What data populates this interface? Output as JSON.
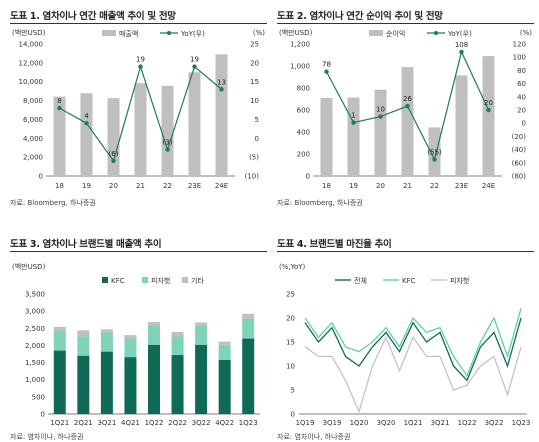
{
  "panels": [
    {
      "title": "도표 1. 염차이나 연간 매출액 추이 및 전망",
      "source": "자료: Bloomberg, 하나증권"
    },
    {
      "title": "도표 2. 염차이나 연간 순이익 추이 및 전망",
      "source": "자료: Bloomberg, 하나증권"
    },
    {
      "title": "도표 3. 염차이나 브랜드별 매출액 추이",
      "source": "자료: 염차이나, 하나증권"
    },
    {
      "title": "도표 4. 브랜드별 마진율 추이",
      "source": "자료: 염차이나, 하나증권"
    }
  ],
  "chart_data": [
    {
      "type": "bar+line",
      "categories": [
        "18",
        "19",
        "20",
        "21",
        "22",
        "23E",
        "24E"
      ],
      "ylabel_left": "(백만USD)",
      "ylabel_right": "(%)",
      "ylim_left": [
        0,
        14000
      ],
      "ylim_right": [
        -10,
        25
      ],
      "left_ticks": [
        "0",
        "2,000",
        "4,000",
        "6,000",
        "8,000",
        "10,000",
        "12,000",
        "14,000"
      ],
      "right_ticks": [
        "(10)",
        "(5)",
        "0",
        "5",
        "10",
        "15",
        "20",
        "25"
      ],
      "series": [
        {
          "name": "매출액",
          "kind": "bar",
          "axis": "left",
          "color": "#bfbfbf",
          "values": [
            8420,
            8780,
            8260,
            9850,
            9570,
            11000,
            12900
          ]
        },
        {
          "name": "YoY(우)",
          "kind": "line",
          "axis": "right",
          "color": "#1e7a62",
          "values": [
            8,
            4,
            -6,
            19,
            -3,
            19,
            13
          ],
          "labels": [
            "8",
            "4",
            "(6)",
            "19",
            "(3)",
            "19",
            "13"
          ]
        }
      ],
      "legend_position": "top-right"
    },
    {
      "type": "bar+line",
      "categories": [
        "18",
        "19",
        "20",
        "21",
        "22",
        "23E",
        "24E"
      ],
      "ylabel_left": "(백만USD)",
      "ylabel_right": "(%)",
      "ylim_left": [
        0,
        1200
      ],
      "ylim_right": [
        -80,
        120
      ],
      "left_ticks": [
        "0",
        "200",
        "400",
        "600",
        "800",
        "1,000",
        "1,200"
      ],
      "right_ticks": [
        "(80)",
        "(60)",
        "(40)",
        "(20)",
        "0",
        "20",
        "40",
        "60",
        "80",
        "100",
        "120"
      ],
      "series": [
        {
          "name": "순이익",
          "kind": "bar",
          "axis": "left",
          "color": "#bfbfbf",
          "values": [
            710,
            713,
            784,
            990,
            442,
            915,
            1090
          ]
        },
        {
          "name": "YoY(우)",
          "kind": "line",
          "axis": "right",
          "color": "#1e7a62",
          "values": [
            78,
            1,
            10,
            26,
            -55,
            108,
            20
          ],
          "labels": [
            "78",
            "1",
            "10",
            "26",
            "(55)",
            "108",
            "20"
          ]
        }
      ],
      "legend_position": "top-right"
    },
    {
      "type": "stacked-bar",
      "categories": [
        "1Q21",
        "2Q21",
        "3Q21",
        "4Q21",
        "1Q22",
        "2Q22",
        "3Q22",
        "4Q22",
        "1Q23"
      ],
      "ylabel": "(백만USD)",
      "ylim": [
        0,
        3500
      ],
      "ticks": [
        "0",
        "500",
        "1,000",
        "1,500",
        "2,000",
        "2,500",
        "3,000",
        "3,500"
      ],
      "series": [
        {
          "name": "KFC",
          "color": "#0f6b55",
          "values": [
            1850,
            1700,
            1820,
            1660,
            2020,
            1720,
            2020,
            1580,
            2200
          ]
        },
        {
          "name": "피자헛",
          "color": "#7fd3b8",
          "values": [
            570,
            570,
            560,
            540,
            560,
            540,
            560,
            440,
            580
          ]
        },
        {
          "name": "기타",
          "color": "#bfbfbf",
          "values": [
            120,
            170,
            90,
            100,
            100,
            130,
            90,
            90,
            140
          ]
        }
      ],
      "legend_position": "top"
    },
    {
      "type": "line",
      "categories": [
        "1Q19",
        "2Q19",
        "3Q19",
        "4Q19",
        "1Q20",
        "2Q20",
        "3Q20",
        "4Q20",
        "1Q21",
        "2Q21",
        "3Q21",
        "4Q21",
        "1Q22",
        "2Q22",
        "3Q22",
        "4Q22",
        "1Q23"
      ],
      "tick_labels": [
        "1Q19",
        "3Q19",
        "1Q20",
        "3Q20",
        "1Q21",
        "3Q21",
        "1Q22",
        "3Q22",
        "1Q23"
      ],
      "ylabel": "(%,YoY)",
      "ylim": [
        0,
        25
      ],
      "ticks": [
        "0",
        "5",
        "10",
        "15",
        "20",
        "25"
      ],
      "series": [
        {
          "name": "전체",
          "color": "#0f6b55",
          "values": [
            19,
            15,
            18,
            12,
            10,
            14,
            17,
            13,
            19,
            15,
            17,
            10,
            7,
            14,
            17,
            10,
            20
          ]
        },
        {
          "name": "KFC",
          "color": "#5fd0ae",
          "values": [
            20,
            16,
            19,
            14,
            13,
            15,
            18,
            14,
            20,
            17,
            18,
            12,
            8,
            15,
            20,
            12,
            22
          ]
        },
        {
          "name": "피자헛",
          "color": "#c4c4c4",
          "values": [
            14,
            12,
            12,
            7,
            0.5,
            10,
            16,
            9,
            16,
            12,
            12,
            5,
            6,
            10,
            12,
            4,
            14
          ]
        }
      ],
      "legend_position": "top"
    }
  ]
}
